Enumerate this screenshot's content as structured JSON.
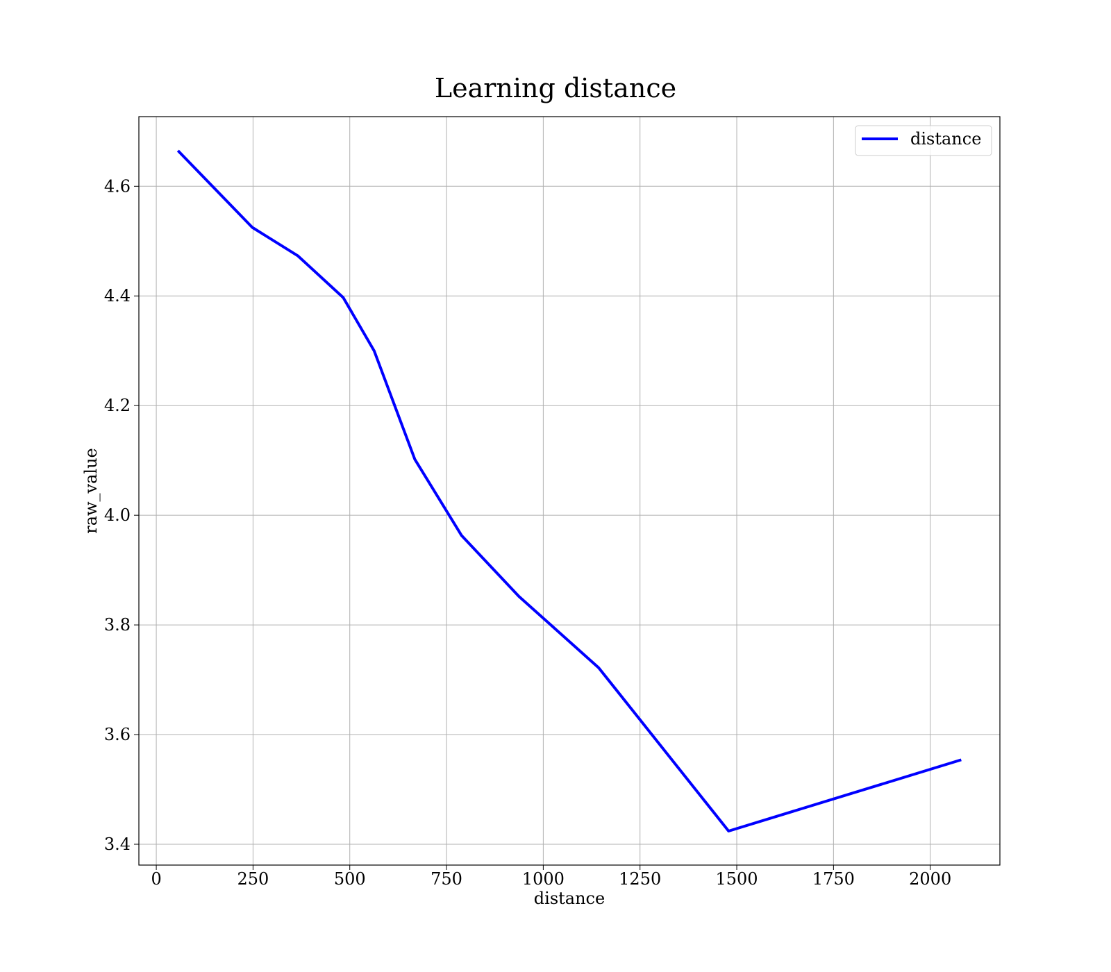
{
  "chart_data": {
    "type": "line",
    "title": "Learning distance",
    "xlabel": "distance",
    "ylabel": "raw_value",
    "xlim": [
      -45,
      2180
    ],
    "ylim": [
      3.362,
      4.727
    ],
    "xticks": [
      0,
      250,
      500,
      750,
      1000,
      1250,
      1500,
      1750,
      2000
    ],
    "yticks": [
      3.4,
      3.6,
      3.8,
      4.0,
      4.2,
      4.4,
      4.6
    ],
    "xtick_labels": [
      "0",
      "250",
      "500",
      "750",
      "1000",
      "1250",
      "1500",
      "1750",
      "2000"
    ],
    "ytick_labels": [
      "3.4",
      "3.6",
      "3.8",
      "4.0",
      "4.2",
      "4.4",
      "4.6"
    ],
    "grid": true,
    "legend": {
      "position": "top-right",
      "entries": [
        "distance"
      ]
    },
    "series": [
      {
        "name": "distance",
        "color": "#0000ff",
        "x": [
          56,
          248,
          366,
          483,
          563,
          668,
          789,
          937,
          1143,
          1479,
          2080
        ],
        "y": [
          4.665,
          4.525,
          4.473,
          4.397,
          4.3,
          4.102,
          3.963,
          3.852,
          3.722,
          3.424,
          3.554
        ]
      }
    ]
  }
}
